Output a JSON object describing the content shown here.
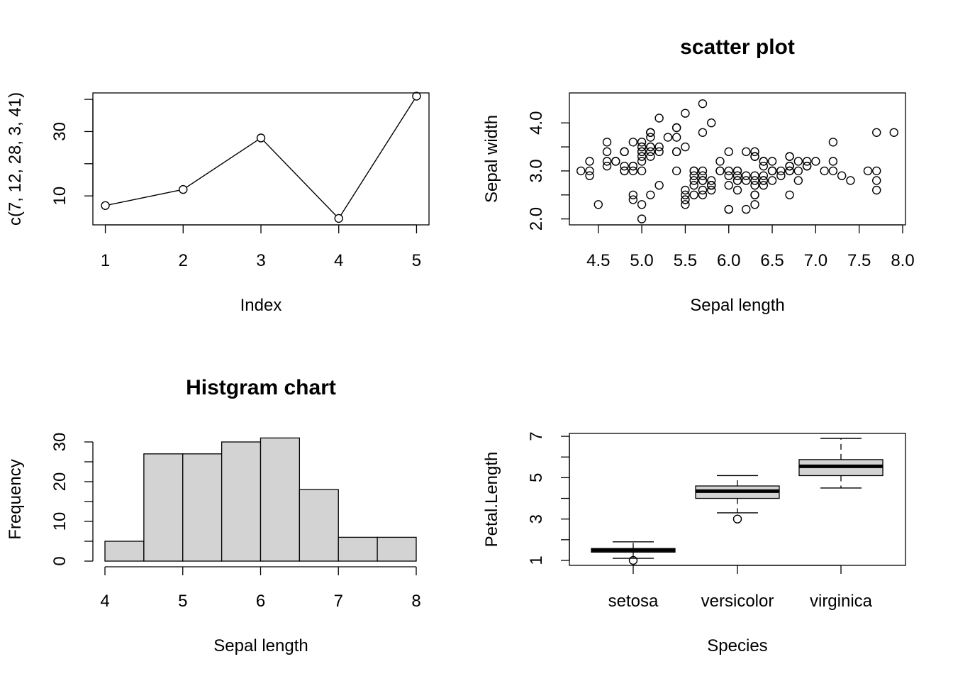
{
  "chart_data": [
    {
      "type": "line",
      "title": "",
      "xlabel": "Index",
      "ylabel": "c(7, 12, 28, 3, 41)",
      "x": [
        1,
        2,
        3,
        4,
        5
      ],
      "y": [
        7,
        12,
        28,
        3,
        41
      ],
      "xticks": [
        "1",
        "2",
        "3",
        "4",
        "5"
      ],
      "yticks": [
        "10",
        "30"
      ],
      "ylim": [
        1,
        42
      ],
      "markers": "open-circle"
    },
    {
      "type": "scatter",
      "title": "scatter plot",
      "xlabel": "Sepal length",
      "ylabel": "Sepal width",
      "xticks": [
        "4.5",
        "5.0",
        "5.5",
        "6.0",
        "6.5",
        "7.0",
        "7.5",
        "8.0"
      ],
      "yticks": [
        "2.0",
        "3.0",
        "4.0"
      ],
      "xlim": [
        4.2,
        8.0
      ],
      "ylim": [
        1.95,
        4.55
      ],
      "points": [
        [
          5.1,
          3.5
        ],
        [
          4.9,
          3.0
        ],
        [
          4.7,
          3.2
        ],
        [
          4.6,
          3.1
        ],
        [
          5.0,
          3.6
        ],
        [
          5.4,
          3.9
        ],
        [
          4.6,
          3.4
        ],
        [
          5.0,
          3.4
        ],
        [
          4.4,
          2.9
        ],
        [
          4.9,
          3.1
        ],
        [
          5.4,
          3.7
        ],
        [
          4.8,
          3.4
        ],
        [
          4.8,
          3.0
        ],
        [
          4.3,
          3.0
        ],
        [
          5.8,
          4.0
        ],
        [
          5.7,
          4.4
        ],
        [
          5.4,
          3.9
        ],
        [
          5.1,
          3.5
        ],
        [
          5.7,
          3.8
        ],
        [
          5.1,
          3.8
        ],
        [
          5.4,
          3.4
        ],
        [
          5.1,
          3.7
        ],
        [
          4.6,
          3.6
        ],
        [
          5.1,
          3.3
        ],
        [
          4.8,
          3.4
        ],
        [
          5.0,
          3.0
        ],
        [
          5.0,
          3.4
        ],
        [
          5.2,
          3.5
        ],
        [
          5.2,
          3.4
        ],
        [
          4.7,
          3.2
        ],
        [
          4.8,
          3.1
        ],
        [
          5.4,
          3.4
        ],
        [
          5.2,
          4.1
        ],
        [
          5.5,
          4.2
        ],
        [
          4.9,
          3.1
        ],
        [
          5.0,
          3.2
        ],
        [
          5.5,
          3.5
        ],
        [
          4.9,
          3.6
        ],
        [
          4.4,
          3.0
        ],
        [
          5.1,
          3.4
        ],
        [
          5.0,
          3.5
        ],
        [
          4.5,
          2.3
        ],
        [
          4.4,
          3.2
        ],
        [
          5.0,
          3.5
        ],
        [
          5.1,
          3.8
        ],
        [
          4.8,
          3.0
        ],
        [
          5.1,
          3.8
        ],
        [
          4.6,
          3.2
        ],
        [
          5.3,
          3.7
        ],
        [
          5.0,
          3.3
        ],
        [
          7.0,
          3.2
        ],
        [
          6.4,
          3.2
        ],
        [
          6.9,
          3.1
        ],
        [
          5.5,
          2.3
        ],
        [
          6.5,
          2.8
        ],
        [
          5.7,
          2.8
        ],
        [
          6.3,
          3.3
        ],
        [
          4.9,
          2.4
        ],
        [
          6.6,
          2.9
        ],
        [
          5.2,
          2.7
        ],
        [
          5.0,
          2.0
        ],
        [
          5.9,
          3.0
        ],
        [
          6.0,
          2.2
        ],
        [
          6.1,
          2.9
        ],
        [
          5.6,
          2.9
        ],
        [
          6.7,
          3.1
        ],
        [
          5.6,
          3.0
        ],
        [
          5.8,
          2.7
        ],
        [
          6.2,
          2.2
        ],
        [
          5.6,
          2.5
        ],
        [
          5.9,
          3.2
        ],
        [
          6.1,
          2.8
        ],
        [
          6.3,
          2.5
        ],
        [
          6.1,
          2.8
        ],
        [
          6.4,
          2.9
        ],
        [
          6.6,
          3.0
        ],
        [
          6.8,
          2.8
        ],
        [
          6.7,
          3.0
        ],
        [
          6.0,
          2.9
        ],
        [
          5.7,
          2.6
        ],
        [
          5.5,
          2.4
        ],
        [
          5.5,
          2.4
        ],
        [
          5.8,
          2.7
        ],
        [
          6.0,
          2.7
        ],
        [
          5.4,
          3.0
        ],
        [
          6.0,
          3.4
        ],
        [
          6.7,
          3.1
        ],
        [
          6.3,
          2.3
        ],
        [
          5.6,
          3.0
        ],
        [
          5.5,
          2.5
        ],
        [
          5.5,
          2.6
        ],
        [
          6.1,
          3.0
        ],
        [
          5.8,
          2.6
        ],
        [
          5.0,
          2.3
        ],
        [
          5.6,
          2.7
        ],
        [
          5.7,
          3.0
        ],
        [
          5.7,
          2.9
        ],
        [
          6.2,
          2.9
        ],
        [
          5.1,
          2.5
        ],
        [
          5.7,
          2.8
        ],
        [
          6.3,
          3.3
        ],
        [
          5.8,
          2.7
        ],
        [
          7.1,
          3.0
        ],
        [
          6.3,
          2.9
        ],
        [
          6.5,
          3.0
        ],
        [
          7.6,
          3.0
        ],
        [
          4.9,
          2.5
        ],
        [
          7.3,
          2.9
        ],
        [
          6.7,
          2.5
        ],
        [
          7.2,
          3.6
        ],
        [
          6.5,
          3.2
        ],
        [
          6.4,
          2.7
        ],
        [
          6.8,
          3.0
        ],
        [
          5.7,
          2.5
        ],
        [
          5.8,
          2.8
        ],
        [
          6.4,
          3.2
        ],
        [
          6.5,
          3.0
        ],
        [
          7.7,
          3.8
        ],
        [
          7.7,
          2.6
        ],
        [
          6.0,
          2.2
        ],
        [
          6.9,
          3.2
        ],
        [
          5.6,
          2.8
        ],
        [
          7.7,
          2.8
        ],
        [
          6.3,
          2.7
        ],
        [
          6.7,
          3.3
        ],
        [
          7.2,
          3.2
        ],
        [
          6.2,
          2.8
        ],
        [
          6.1,
          3.0
        ],
        [
          6.4,
          2.8
        ],
        [
          7.2,
          3.0
        ],
        [
          7.4,
          2.8
        ],
        [
          7.9,
          3.8
        ],
        [
          6.4,
          2.8
        ],
        [
          6.3,
          2.8
        ],
        [
          6.1,
          2.6
        ],
        [
          7.7,
          3.0
        ],
        [
          6.3,
          3.4
        ],
        [
          6.4,
          3.1
        ],
        [
          6.0,
          3.0
        ],
        [
          6.9,
          3.1
        ],
        [
          6.7,
          3.1
        ],
        [
          6.9,
          3.1
        ],
        [
          5.8,
          2.7
        ],
        [
          6.8,
          3.2
        ],
        [
          6.7,
          3.3
        ],
        [
          6.7,
          3.0
        ],
        [
          6.3,
          2.5
        ],
        [
          6.5,
          3.0
        ],
        [
          6.2,
          3.4
        ],
        [
          5.9,
          3.0
        ]
      ]
    },
    {
      "type": "bar",
      "subtype": "histogram",
      "title": "Histgram chart",
      "xlabel": "Sepal length",
      "ylabel": "Frequency",
      "bins": [
        [
          4.0,
          4.5
        ],
        [
          4.5,
          5.0
        ],
        [
          5.0,
          5.5
        ],
        [
          5.5,
          6.0
        ],
        [
          6.0,
          6.5
        ],
        [
          6.5,
          7.0
        ],
        [
          7.0,
          7.5
        ],
        [
          7.5,
          8.0
        ]
      ],
      "values": [
        5,
        27,
        27,
        30,
        31,
        18,
        6,
        6
      ],
      "xticks": [
        "4",
        "5",
        "6",
        "7",
        "8"
      ],
      "yticks": [
        "0",
        "10",
        "20",
        "30"
      ],
      "fill": "#d3d3d3"
    },
    {
      "type": "box",
      "title": "",
      "xlabel": "Species",
      "ylabel": "Petal.Length",
      "categories": [
        "setosa",
        "versicolor",
        "virginica"
      ],
      "yticks": [
        "1",
        "3",
        "5",
        "7"
      ],
      "ylim": [
        0.76,
        7.14
      ],
      "boxes": [
        {
          "min": 1.1,
          "q1": 1.4,
          "median": 1.5,
          "q3": 1.575,
          "max": 1.9,
          "outliers": [
            1.0
          ]
        },
        {
          "min": 3.3,
          "q1": 4.0,
          "median": 4.35,
          "q3": 4.6,
          "max": 5.1,
          "outliers": [
            3.0
          ]
        },
        {
          "min": 4.5,
          "q1": 5.1,
          "median": 5.55,
          "q3": 5.875,
          "max": 6.9,
          "outliers": []
        }
      ],
      "fill": "#d3d3d3"
    }
  ]
}
